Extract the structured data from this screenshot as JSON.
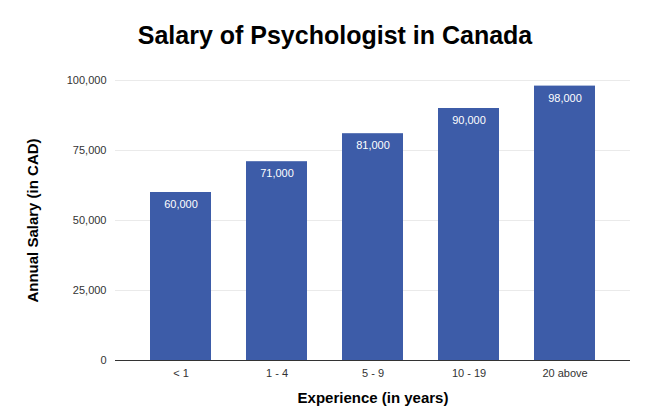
{
  "chart_data": {
    "type": "bar",
    "title": "Salary of Psychologist in Canada",
    "x_label": "Experience (in years)",
    "y_label": "Annual Salary (in CAD)",
    "categories": [
      "< 1",
      "1 - 4",
      "5 - 9",
      "10 - 19",
      "20 above"
    ],
    "values": [
      60000,
      71000,
      81000,
      90000,
      98000
    ],
    "value_labels": [
      "60,000",
      "71,000",
      "81,000",
      "90,000",
      "98,000"
    ],
    "color": "#3d5ca8",
    "ylim": [
      0,
      100000
    ],
    "yticks": [
      {
        "value": 0,
        "label": "0"
      },
      {
        "value": 25000,
        "label": "25,000"
      },
      {
        "value": 50000,
        "label": "50,000"
      },
      {
        "value": 75000,
        "label": "75,000"
      },
      {
        "value": 100000,
        "label": "100,000"
      }
    ],
    "grid": true,
    "data_labels": true
  }
}
